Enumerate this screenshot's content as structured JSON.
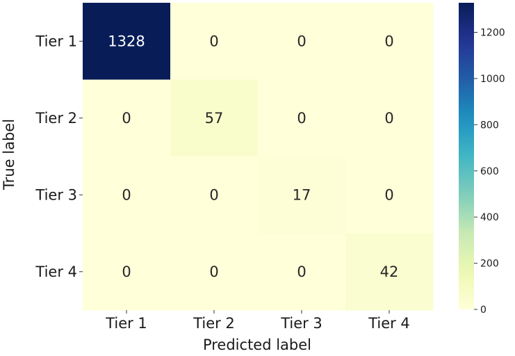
{
  "chart_data": {
    "type": "heatmap",
    "row_labels": [
      "Tier 1",
      "Tier 2",
      "Tier 3",
      "Tier 4"
    ],
    "col_labels": [
      "Tier 1",
      "Tier 2",
      "Tier 3",
      "Tier 4"
    ],
    "values": [
      [
        1328,
        0,
        0,
        0
      ],
      [
        0,
        57,
        0,
        0
      ],
      [
        0,
        0,
        17,
        0
      ],
      [
        0,
        0,
        0,
        42
      ]
    ],
    "xlabel": "Predicted label",
    "ylabel": "True label",
    "colorbar": {
      "min": 0,
      "max": 1328,
      "ticks": [
        0,
        200,
        400,
        600,
        800,
        1000,
        1200
      ],
      "colormap": "YlGnBu"
    },
    "colors": {
      "low": "#ffffd9",
      "high": "#081d58",
      "label_on_dark": "#ffffff",
      "label_on_light": "#262626"
    }
  }
}
